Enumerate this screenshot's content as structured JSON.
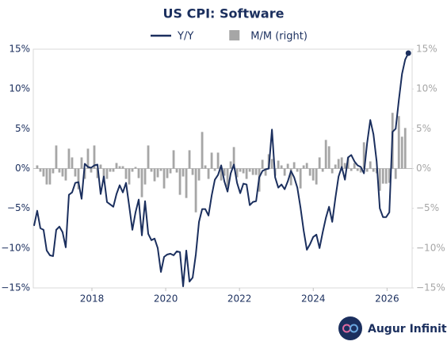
{
  "chart_data": {
    "type": "line",
    "title": "US CPI: Software",
    "x": [
      2016.43,
      2016.516,
      2016.602,
      2016.688,
      2016.774,
      2016.86,
      2016.946,
      2017.032,
      2017.118,
      2017.204,
      2017.29,
      2017.376,
      2017.462,
      2017.548,
      2017.634,
      2017.72,
      2017.806,
      2017.892,
      2017.978,
      2018.064,
      2018.15,
      2018.236,
      2018.322,
      2018.408,
      2018.494,
      2018.58,
      2018.666,
      2018.752,
      2018.838,
      2018.924,
      2019.01,
      2019.096,
      2019.182,
      2019.268,
      2019.354,
      2019.44,
      2019.526,
      2019.612,
      2019.698,
      2019.784,
      2019.87,
      2019.956,
      2020.042,
      2020.128,
      2020.214,
      2020.3,
      2020.386,
      2020.472,
      2020.558,
      2020.644,
      2020.73,
      2020.816,
      2020.902,
      2020.988,
      2021.074,
      2021.16,
      2021.246,
      2021.332,
      2021.418,
      2021.504,
      2021.59,
      2021.676,
      2021.762,
      2021.848,
      2021.934,
      2022.02,
      2022.106,
      2022.192,
      2022.278,
      2022.364,
      2022.45,
      2022.536,
      2022.622,
      2022.708,
      2022.794,
      2022.88,
      2022.966,
      2023.052,
      2023.138,
      2023.224,
      2023.31,
      2023.396,
      2023.482,
      2023.568,
      2023.654,
      2023.74,
      2023.826,
      2023.912,
      2023.998,
      2024.084,
      2024.17,
      2024.256,
      2024.342,
      2024.428,
      2024.514,
      2024.6,
      2024.686,
      2024.772,
      2024.858,
      2024.944,
      2025.03,
      2025.116,
      2025.202,
      2025.288,
      2025.374,
      2025.46,
      2025.546,
      2025.632,
      2025.718,
      2025.804,
      2025.89,
      2025.976,
      2026.062,
      2026.148,
      2026.234,
      2026.32,
      2026.406,
      2026.492,
      2026.578
    ],
    "series": [
      {
        "name": "Y/Y",
        "type": "line",
        "color": "#1b2f5e",
        "values": [
          -7.2,
          -5.3,
          -7.5,
          -7.7,
          -10.3,
          -10.9,
          -11,
          -7.7,
          -7.3,
          -8,
          -9.9,
          -3.3,
          -3,
          -1.8,
          -1.7,
          -3.8,
          0.6,
          0.2,
          0.1,
          0.4,
          0.5,
          -3.2,
          -1,
          -4.2,
          -4.5,
          -4.8,
          -3.2,
          -2.1,
          -3,
          -1.8,
          -4.7,
          -7.7,
          -5.5,
          -3.9,
          -8.4,
          -4.1,
          -8.2,
          -9,
          -8.8,
          -10,
          -13,
          -11.1,
          -10.8,
          -10.7,
          -10.9,
          -10.4,
          -10.5,
          -14.8,
          -10.3,
          -14.2,
          -13.7,
          -10.8,
          -6.7,
          -5.1,
          -5.1,
          -5.9,
          -3.4,
          -1.4,
          -0.8,
          0.4,
          -1.6,
          -2.9,
          -0.6,
          0.5,
          -1.8,
          -3.1,
          -1.9,
          -2,
          -4.6,
          -4.2,
          -4.1,
          -1.1,
          -0.3,
          -0.1,
          0,
          4.9,
          -1.1,
          -2.4,
          -2,
          -2.6,
          -1.6,
          -0.3,
          -1.1,
          -2.4,
          -4.9,
          -7.8,
          -10.2,
          -9.5,
          -8.6,
          -8.3,
          -10,
          -8,
          -6.2,
          -4.8,
          -6.7,
          -3.7,
          -1,
          0.2,
          -1.4,
          1.4,
          1.7,
          0.9,
          0.4,
          0.2,
          -0.6,
          3.2,
          6.1,
          4.3,
          0.9,
          -5,
          -6.1,
          -6.1,
          -5.5,
          4.6,
          5,
          8.6,
          11.9,
          13.7,
          14.5
        ]
      },
      {
        "name": "M/M (right)",
        "type": "bar",
        "axis": "y2",
        "color": "#a6a6a6",
        "values": [
          null,
          0.4,
          -0.4,
          -1,
          -2,
          -2,
          -0.6,
          2.9,
          -0.5,
          -1,
          -1.5,
          2.5,
          1.4,
          -1,
          -2.6,
          1.4,
          -1.3,
          2.5,
          -0.5,
          2.9,
          -1.2,
          0.5,
          -1.4,
          -1.3,
          -0.4,
          -0.4,
          0.7,
          0.3,
          0.3,
          -1.3,
          -2,
          -0.4,
          0.2,
          -1.2,
          -3.6,
          -2,
          2.9,
          -0.4,
          -1.6,
          -1.1,
          -0.3,
          -2.5,
          -1.2,
          -0.6,
          2.3,
          -0.5,
          -3.3,
          -1,
          -3.7,
          2.3,
          -0.8,
          -5.5,
          -1.5,
          4.6,
          0.4,
          -1.3,
          2,
          -0.3,
          2,
          -1.5,
          -0.9,
          -2.3,
          0.9,
          2.7,
          -1.1,
          -0.4,
          -0.6,
          -1.3,
          -0.4,
          -0.8,
          -0.8,
          -2.9,
          1.1,
          -0.9,
          1.8,
          1.2,
          -0.9,
          1,
          0.4,
          -0.9,
          0.6,
          -2.1,
          0.8,
          -0.4,
          -2.5,
          0.4,
          0.7,
          -0.9,
          -1.5,
          -2,
          1.4,
          -0.4,
          3.6,
          2.8,
          -0.6,
          0.5,
          1.2,
          1.4,
          0.7,
          1.4,
          -0.3,
          0.7,
          -0.3,
          -0.5,
          3.3,
          -0.4,
          0.9,
          -0.4,
          -0.6,
          -2.8,
          -1.9,
          -1.9,
          -1.8,
          7,
          -1.3,
          6.6,
          4,
          5.1,
          null
        ]
      }
    ],
    "xlim": [
      2016.41,
      2026.68
    ],
    "xticks": [
      2018,
      2020,
      2022,
      2024,
      2026
    ],
    "ylim": [
      -15,
      15
    ],
    "yticks": [
      {
        "value": 15,
        "label": "15%"
      },
      {
        "value": 10,
        "label": "10%"
      },
      {
        "value": 5,
        "label": "5%"
      },
      {
        "value": 0,
        "label": "0%"
      },
      {
        "value": -5,
        "label": "−5%"
      },
      {
        "value": -10,
        "label": "−10%"
      },
      {
        "value": -15,
        "label": "−15%"
      }
    ],
    "y2lim": [
      -15,
      15
    ],
    "y2ticks": [
      {
        "value": 15,
        "label": "15%"
      },
      {
        "value": 10,
        "label": "10%"
      },
      {
        "value": 5,
        "label": "5%"
      },
      {
        "value": 0,
        "label": "0%"
      },
      {
        "value": -5,
        "label": "−5%"
      },
      {
        "value": -10,
        "label": "−10%"
      },
      {
        "value": -15,
        "label": "−15%"
      }
    ],
    "grid": false,
    "legend": "top"
  },
  "footer": {
    "brand": "Augur Infinity"
  }
}
